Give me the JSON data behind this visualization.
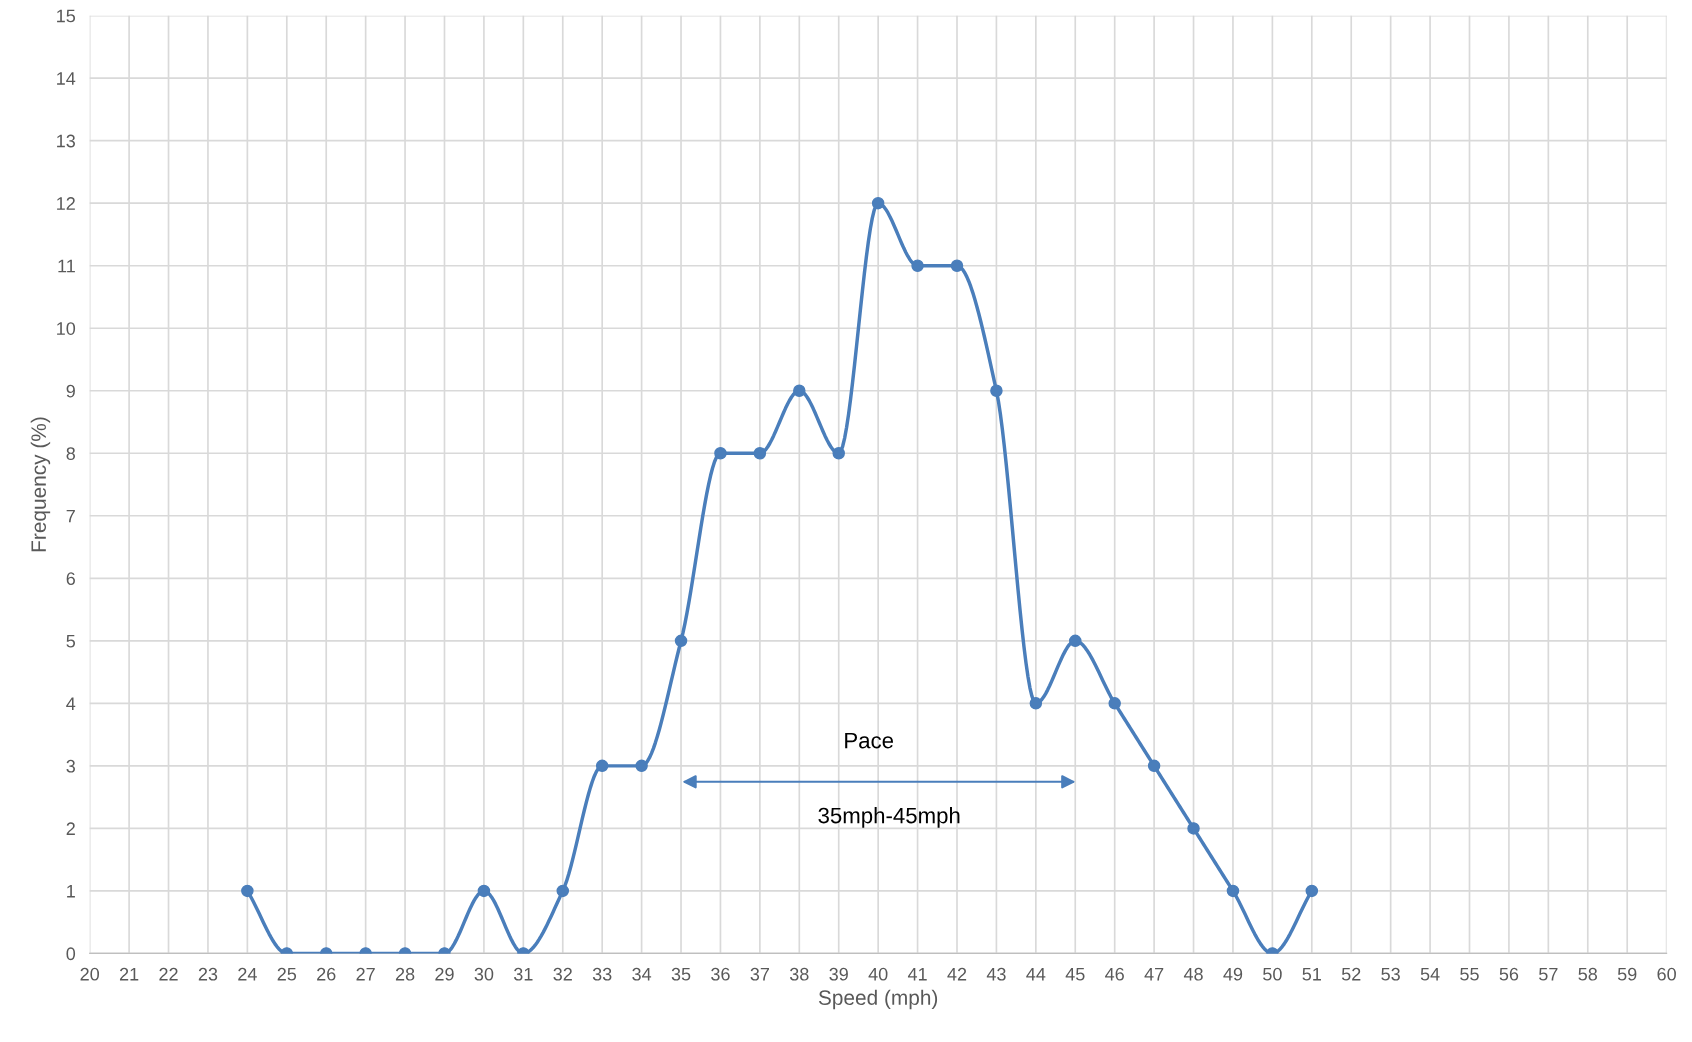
{
  "chart_data": {
    "type": "line",
    "xlabel": "Speed (mph)",
    "ylabel": "Frequency (%)",
    "x": [
      24,
      25,
      26,
      27,
      28,
      29,
      30,
      31,
      32,
      33,
      34,
      35,
      36,
      37,
      38,
      39,
      40,
      41,
      42,
      43,
      44,
      45,
      46,
      47,
      48,
      49,
      50,
      51
    ],
    "series": [
      {
        "color": "#4a7ebb",
        "values": [
          1,
          0,
          0,
          0,
          0,
          0,
          1,
          0,
          1,
          3,
          3,
          5,
          8,
          8,
          9,
          8,
          12,
          11,
          11,
          9,
          4,
          5,
          4,
          3,
          2,
          1,
          0,
          1
        ]
      }
    ],
    "xlim": [
      20,
      60
    ],
    "xticks": [
      20,
      21,
      22,
      23,
      24,
      25,
      26,
      27,
      28,
      29,
      30,
      31,
      32,
      33,
      34,
      35,
      36,
      37,
      38,
      39,
      40,
      41,
      42,
      43,
      44,
      45,
      46,
      47,
      48,
      49,
      50,
      51,
      52,
      53,
      54,
      55,
      56,
      57,
      58,
      59,
      60
    ],
    "ylim": [
      0,
      15
    ],
    "yticks": [
      0,
      1,
      2,
      3,
      4,
      5,
      6,
      7,
      8,
      9,
      10,
      11,
      12,
      13,
      14,
      15
    ],
    "grid": true,
    "marker": "circle",
    "line_style": "solid",
    "legend": false,
    "annotations": [
      "Pace",
      "35mph-45mph"
    ]
  }
}
